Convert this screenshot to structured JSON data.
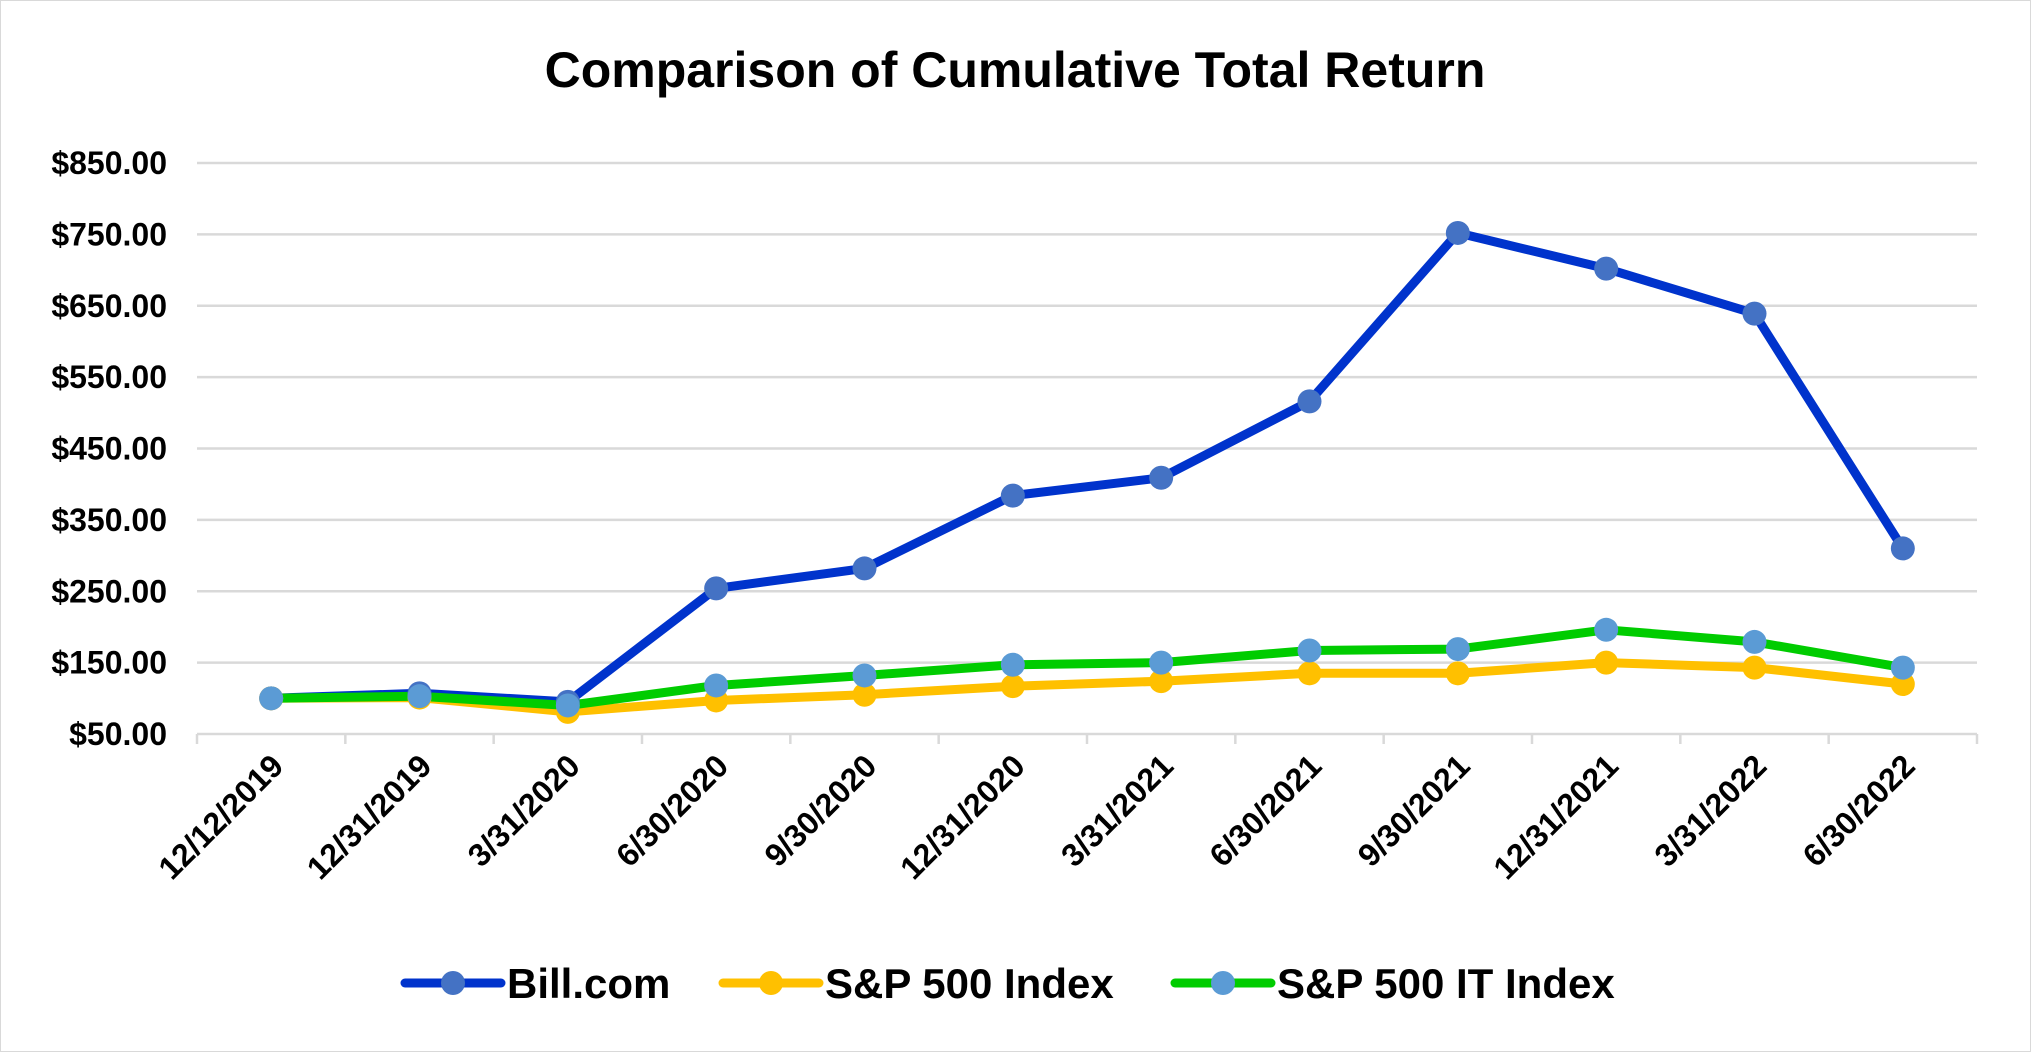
{
  "chart_data": {
    "type": "line",
    "title": "Comparison of Cumulative Total Return",
    "xlabel": "",
    "ylabel": "",
    "categories": [
      "12/12/2019",
      "12/31/2019",
      "3/31/2020",
      "6/30/2020",
      "9/30/2020",
      "12/31/2020",
      "3/31/2021",
      "6/30/2021",
      "9/30/2021",
      "12/31/2021",
      "3/31/2022",
      "6/30/2022"
    ],
    "yticks": [
      "$50.00",
      "$150.00",
      "$250.00",
      "$350.00",
      "$450.00",
      "$550.00",
      "$650.00",
      "$750.00",
      "$850.00"
    ],
    "ylim": [
      50,
      850
    ],
    "grid": true,
    "legend_position": "bottom",
    "series": [
      {
        "name": "Bill.com",
        "line_color": "#0033cc",
        "marker_color": "#4472c4",
        "values": [
          100,
          107,
          95,
          254,
          282,
          384,
          409,
          516,
          752,
          702,
          639,
          310
        ]
      },
      {
        "name": "S&P 500 Index",
        "line_color": "#ffc000",
        "marker_color": "#ffc000",
        "values": [
          100,
          101,
          81,
          97,
          105,
          117,
          124,
          135,
          135,
          150,
          143,
          120
        ]
      },
      {
        "name": "S&P 500 IT Index",
        "line_color": "#00cc00",
        "marker_color": "#5b9bd5",
        "values": [
          100,
          103,
          90,
          118,
          132,
          147,
          150,
          167,
          169,
          196,
          179,
          143
        ]
      }
    ]
  }
}
